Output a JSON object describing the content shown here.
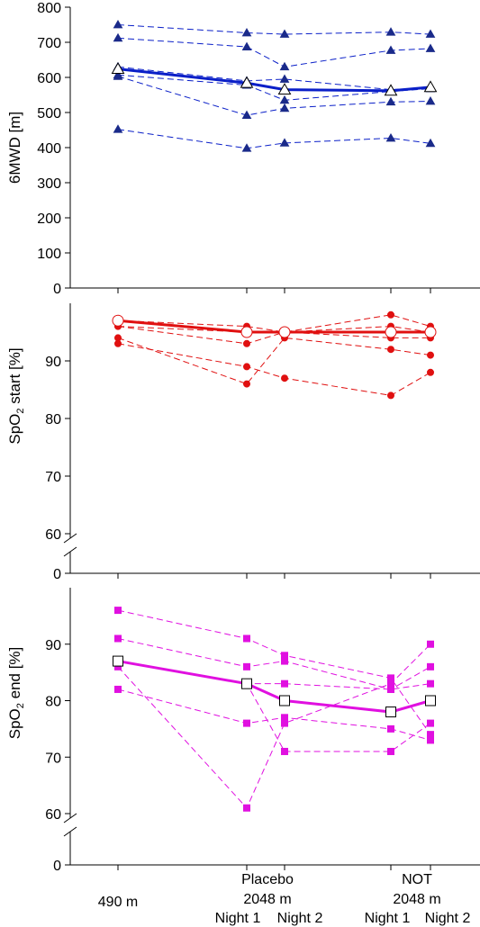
{
  "chart_data": [
    {
      "type": "line",
      "ylabel": "6MWD [m]",
      "ylim": [
        0,
        800
      ],
      "yticks": [
        0,
        100,
        200,
        300,
        400,
        500,
        600,
        700,
        800
      ],
      "color": "#0a1fc8",
      "marker_color": "#1a2a8a",
      "marker": "triangle",
      "x": [
        0,
        1,
        2,
        3,
        4
      ],
      "individuals": [
        [
          750,
          727,
          723,
          729,
          723
        ],
        [
          712,
          687,
          630,
          677,
          682
        ],
        [
          630,
          590,
          595,
          565,
          572
        ],
        [
          607,
          578,
          535,
          560,
          568
        ],
        [
          603,
          492,
          512,
          530,
          532
        ],
        [
          452,
          398,
          413,
          427,
          412
        ]
      ],
      "mean": [
        624,
        584,
        565,
        562,
        572
      ]
    },
    {
      "type": "line",
      "ylabel": "SpO2 start [%]",
      "ylim": [
        60,
        100
      ],
      "yticks": [
        60,
        70,
        80,
        90
      ],
      "color": "#e01010",
      "marker_color": "#e01010",
      "marker": "circle",
      "x": [
        0,
        1,
        2,
        3,
        4
      ],
      "individuals": [
        [
          97,
          96,
          95,
          98,
          96
        ],
        [
          96,
          95,
          95,
          96,
          95
        ],
        [
          96,
          93,
          95,
          94,
          94
        ],
        [
          94,
          86,
          94,
          92,
          91
        ],
        [
          93,
          89,
          87,
          84,
          88
        ]
      ],
      "mean": [
        97,
        95,
        95,
        95,
        95
      ]
    },
    {
      "type": "line",
      "ylabel": "SpO2 end [%]",
      "ylim": [
        60,
        100
      ],
      "yticks": [
        60,
        70,
        80,
        90
      ],
      "color": "#e010e0",
      "marker_color": "#e010e0",
      "marker": "square",
      "x": [
        0,
        1,
        2,
        3,
        4
      ],
      "individuals": [
        [
          96,
          91,
          88,
          84,
          74
        ],
        [
          91,
          86,
          87,
          82,
          86
        ],
        [
          87,
          83,
          83,
          82,
          83
        ],
        [
          86,
          61,
          76,
          83,
          90
        ],
        [
          82,
          76,
          77,
          75,
          73
        ],
        [
          87,
          83,
          71,
          71,
          76
        ]
      ],
      "mean": [
        87,
        83,
        80,
        78,
        80
      ]
    }
  ],
  "x_labels": {
    "group1": "490 m",
    "group2_line1": "Placebo",
    "group2_line2": "2048 m",
    "group3_line1": "NOT",
    "group3_line2": "2048 m",
    "night1": "Night 1",
    "night2": "Night 2"
  }
}
